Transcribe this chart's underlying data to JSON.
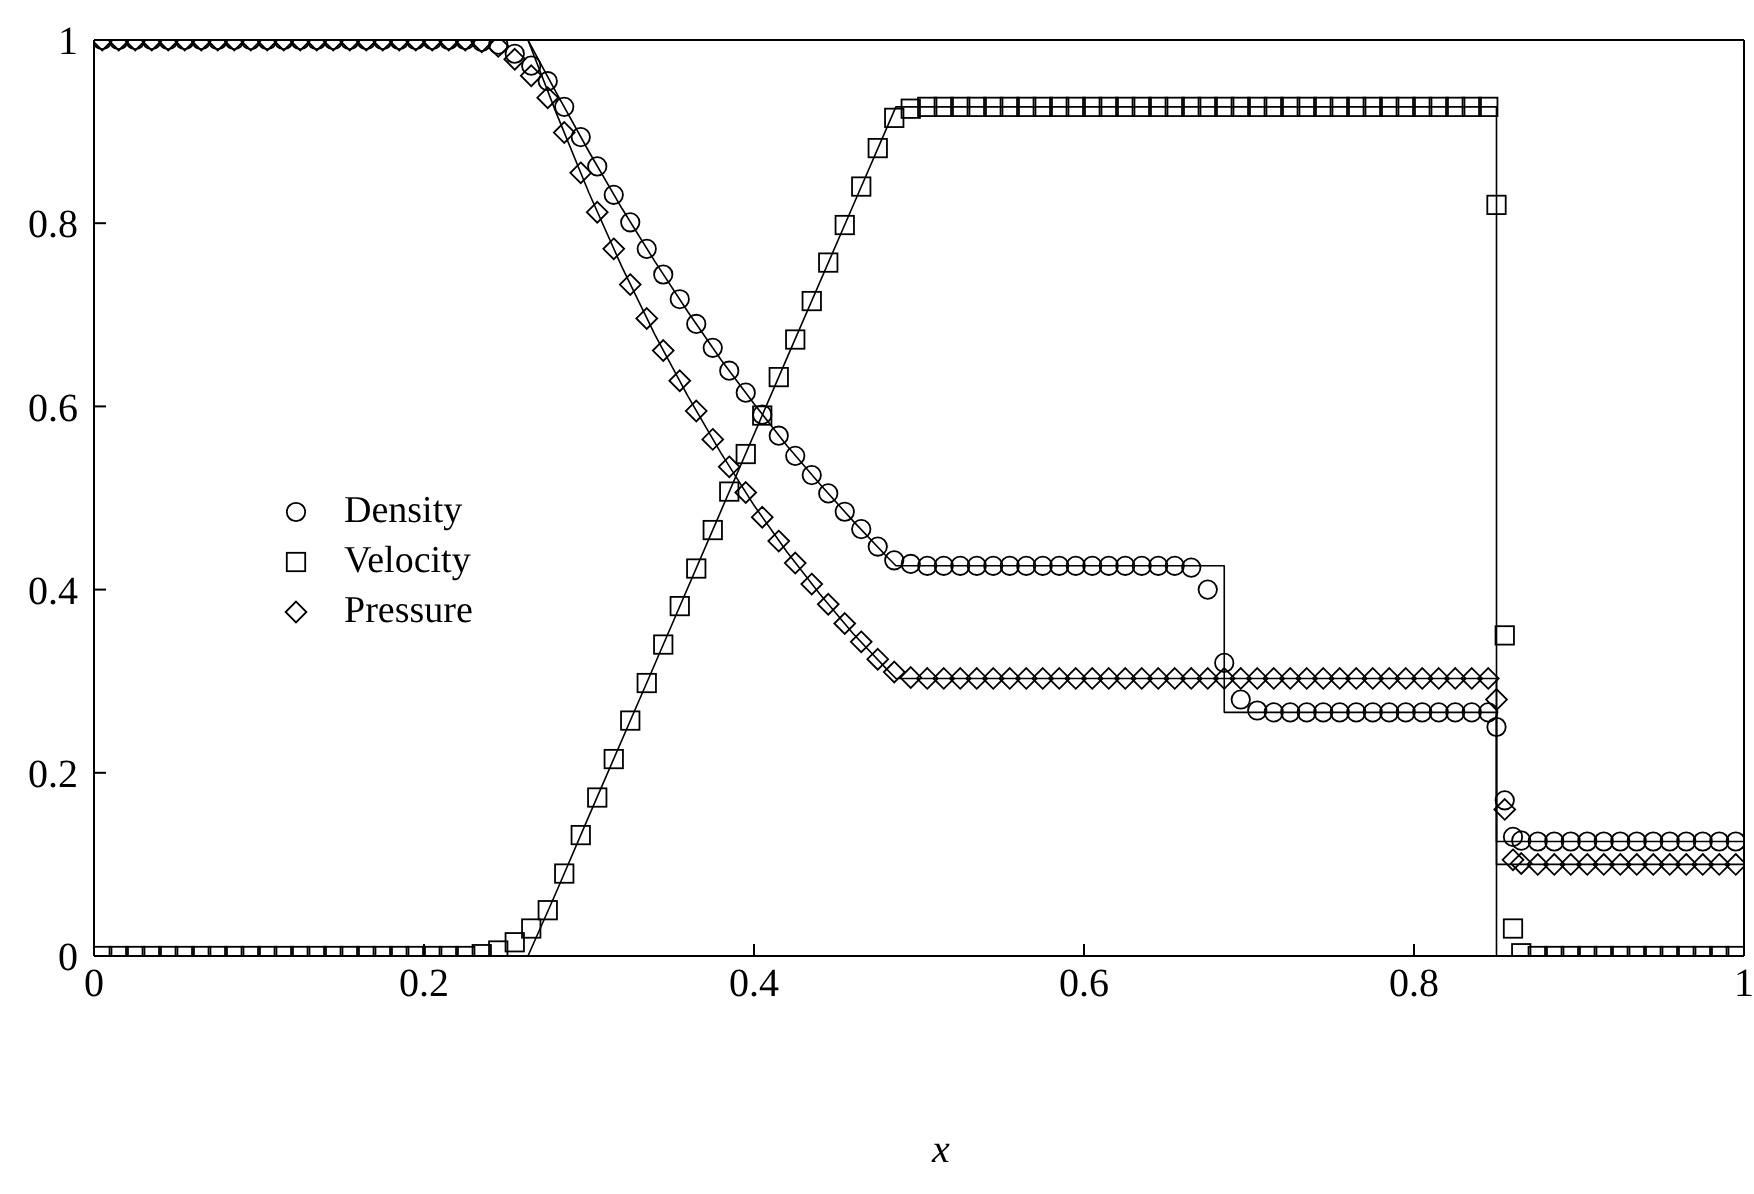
{
  "chart_data": {
    "type": "scatter",
    "xlabel": "x",
    "xlim": [
      0,
      1
    ],
    "xticks": [
      0,
      0.2,
      0.4,
      0.6,
      0.8,
      1
    ],
    "ylim": [
      0,
      1
    ],
    "yticks": [
      0,
      0.2,
      0.4,
      0.6,
      0.8,
      1
    ],
    "grid": false,
    "legend": "left",
    "x": [
      0.005,
      0.015,
      0.025,
      0.035,
      0.045,
      0.055,
      0.065,
      0.075,
      0.085,
      0.095,
      0.105,
      0.115,
      0.125,
      0.135,
      0.145,
      0.155,
      0.165,
      0.175,
      0.185,
      0.195,
      0.205,
      0.215,
      0.225,
      0.235,
      0.245,
      0.255,
      0.265,
      0.275,
      0.285,
      0.295,
      0.305,
      0.315,
      0.325,
      0.335,
      0.345,
      0.355,
      0.365,
      0.375,
      0.385,
      0.395,
      0.405,
      0.415,
      0.425,
      0.435,
      0.445,
      0.455,
      0.465,
      0.475,
      0.485,
      0.495,
      0.505,
      0.515,
      0.525,
      0.535,
      0.545,
      0.555,
      0.565,
      0.575,
      0.585,
      0.595,
      0.605,
      0.615,
      0.625,
      0.635,
      0.645,
      0.655,
      0.665,
      0.675,
      0.685,
      0.695,
      0.705,
      0.715,
      0.725,
      0.735,
      0.745,
      0.755,
      0.765,
      0.775,
      0.785,
      0.795,
      0.805,
      0.815,
      0.825,
      0.835,
      0.845,
      0.85,
      0.855,
      0.86,
      0.865,
      0.875,
      0.885,
      0.895,
      0.905,
      0.915,
      0.925,
      0.935,
      0.945,
      0.955,
      0.965,
      0.975,
      0.985,
      0.995
    ],
    "series": [
      {
        "name": "Density",
        "marker": "circle",
        "color": "#000000",
        "values": [
          1,
          1,
          1,
          1,
          1,
          1,
          1,
          1,
          1,
          1,
          1,
          1,
          1,
          1,
          1,
          1,
          1,
          1,
          1,
          1,
          1,
          1,
          1,
          0.998,
          0.995,
          0.985,
          0.972,
          0.955,
          0.927,
          0.894,
          0.862,
          0.831,
          0.801,
          0.772,
          0.744,
          0.717,
          0.69,
          0.664,
          0.639,
          0.615,
          0.591,
          0.568,
          0.546,
          0.525,
          0.505,
          0.485,
          0.466,
          0.447,
          0.432,
          0.428,
          0.426,
          0.426,
          0.426,
          0.426,
          0.426,
          0.426,
          0.426,
          0.426,
          0.426,
          0.426,
          0.426,
          0.426,
          0.426,
          0.426,
          0.426,
          0.426,
          0.424,
          0.4,
          0.32,
          0.28,
          0.268,
          0.266,
          0.266,
          0.266,
          0.266,
          0.266,
          0.266,
          0.266,
          0.266,
          0.266,
          0.266,
          0.266,
          0.266,
          0.266,
          0.266,
          0.25,
          0.17,
          0.13,
          0.126,
          0.125,
          0.125,
          0.125,
          0.125,
          0.125,
          0.125,
          0.125,
          0.125,
          0.125,
          0.125,
          0.125,
          0.125,
          0.125
        ]
      },
      {
        "name": "Velocity",
        "marker": "square",
        "color": "#000000",
        "values": [
          0,
          0,
          0,
          0,
          0,
          0,
          0,
          0,
          0,
          0,
          0,
          0,
          0,
          0,
          0,
          0,
          0,
          0,
          0,
          0,
          0,
          0,
          0,
          0.002,
          0.006,
          0.015,
          0.03,
          0.05,
          0.09,
          0.132,
          0.173,
          0.215,
          0.257,
          0.298,
          0.34,
          0.382,
          0.423,
          0.465,
          0.507,
          0.548,
          0.59,
          0.632,
          0.673,
          0.715,
          0.757,
          0.798,
          0.84,
          0.882,
          0.915,
          0.925,
          0.927,
          0.927,
          0.927,
          0.927,
          0.927,
          0.927,
          0.927,
          0.927,
          0.927,
          0.927,
          0.927,
          0.927,
          0.927,
          0.927,
          0.927,
          0.927,
          0.927,
          0.927,
          0.927,
          0.927,
          0.927,
          0.927,
          0.927,
          0.927,
          0.927,
          0.927,
          0.927,
          0.927,
          0.927,
          0.927,
          0.927,
          0.927,
          0.927,
          0.927,
          0.927,
          0.82,
          0.35,
          0.03,
          0.003,
          0,
          0,
          0,
          0,
          0,
          0,
          0,
          0,
          0,
          0,
          0,
          0,
          0
        ]
      },
      {
        "name": "Pressure",
        "marker": "diamond",
        "color": "#000000",
        "values": [
          1,
          1,
          1,
          1,
          1,
          1,
          1,
          1,
          1,
          1,
          1,
          1,
          1,
          1,
          1,
          1,
          1,
          1,
          1,
          1,
          1,
          1,
          1,
          0.998,
          0.993,
          0.979,
          0.961,
          0.937,
          0.899,
          0.855,
          0.812,
          0.772,
          0.733,
          0.696,
          0.661,
          0.628,
          0.595,
          0.564,
          0.534,
          0.506,
          0.479,
          0.453,
          0.429,
          0.406,
          0.384,
          0.363,
          0.343,
          0.324,
          0.31,
          0.304,
          0.303,
          0.303,
          0.303,
          0.303,
          0.303,
          0.303,
          0.303,
          0.303,
          0.303,
          0.303,
          0.303,
          0.303,
          0.303,
          0.303,
          0.303,
          0.303,
          0.303,
          0.303,
          0.303,
          0.303,
          0.303,
          0.303,
          0.303,
          0.303,
          0.303,
          0.303,
          0.303,
          0.303,
          0.303,
          0.303,
          0.303,
          0.303,
          0.303,
          0.303,
          0.303,
          0.28,
          0.16,
          0.105,
          0.101,
          0.1,
          0.1,
          0.1,
          0.1,
          0.1,
          0.1,
          0.1,
          0.1,
          0.1,
          0.1,
          0.1,
          0.1,
          0.1
        ]
      },
      {
        "type": "line",
        "line_style": "solid",
        "color": "#000000",
        "x": [
          0,
          0.263,
          0.28,
          0.3,
          0.32,
          0.34,
          0.36,
          0.38,
          0.4,
          0.42,
          0.44,
          0.46,
          0.48,
          0.486,
          0.685,
          0.685,
          0.85,
          0.85,
          1
        ],
        "values": [
          1,
          1,
          0.943,
          0.878,
          0.816,
          0.758,
          0.703,
          0.651,
          0.603,
          0.557,
          0.515,
          0.475,
          0.437,
          0.426,
          0.426,
          0.266,
          0.266,
          0.125,
          0.125
        ]
      },
      {
        "type": "line",
        "line_style": "solid",
        "color": "#000000",
        "x": [
          0,
          0.263,
          0.28,
          0.3,
          0.34,
          0.38,
          0.42,
          0.46,
          0.486,
          0.85,
          0.85,
          1
        ],
        "values": [
          0,
          0,
          0.069,
          0.153,
          0.319,
          0.486,
          0.653,
          0.819,
          0.927,
          0.927,
          0,
          0
        ]
      },
      {
        "type": "line",
        "line_style": "solid",
        "color": "#000000",
        "x": [
          0,
          0.263,
          0.28,
          0.3,
          0.32,
          0.34,
          0.36,
          0.38,
          0.4,
          0.42,
          0.44,
          0.46,
          0.48,
          0.486,
          0.85,
          0.85,
          1
        ],
        "values": [
          1,
          1,
          0.921,
          0.833,
          0.752,
          0.678,
          0.611,
          0.549,
          0.492,
          0.441,
          0.395,
          0.352,
          0.314,
          0.303,
          0.303,
          0.1,
          0.1
        ]
      }
    ]
  }
}
